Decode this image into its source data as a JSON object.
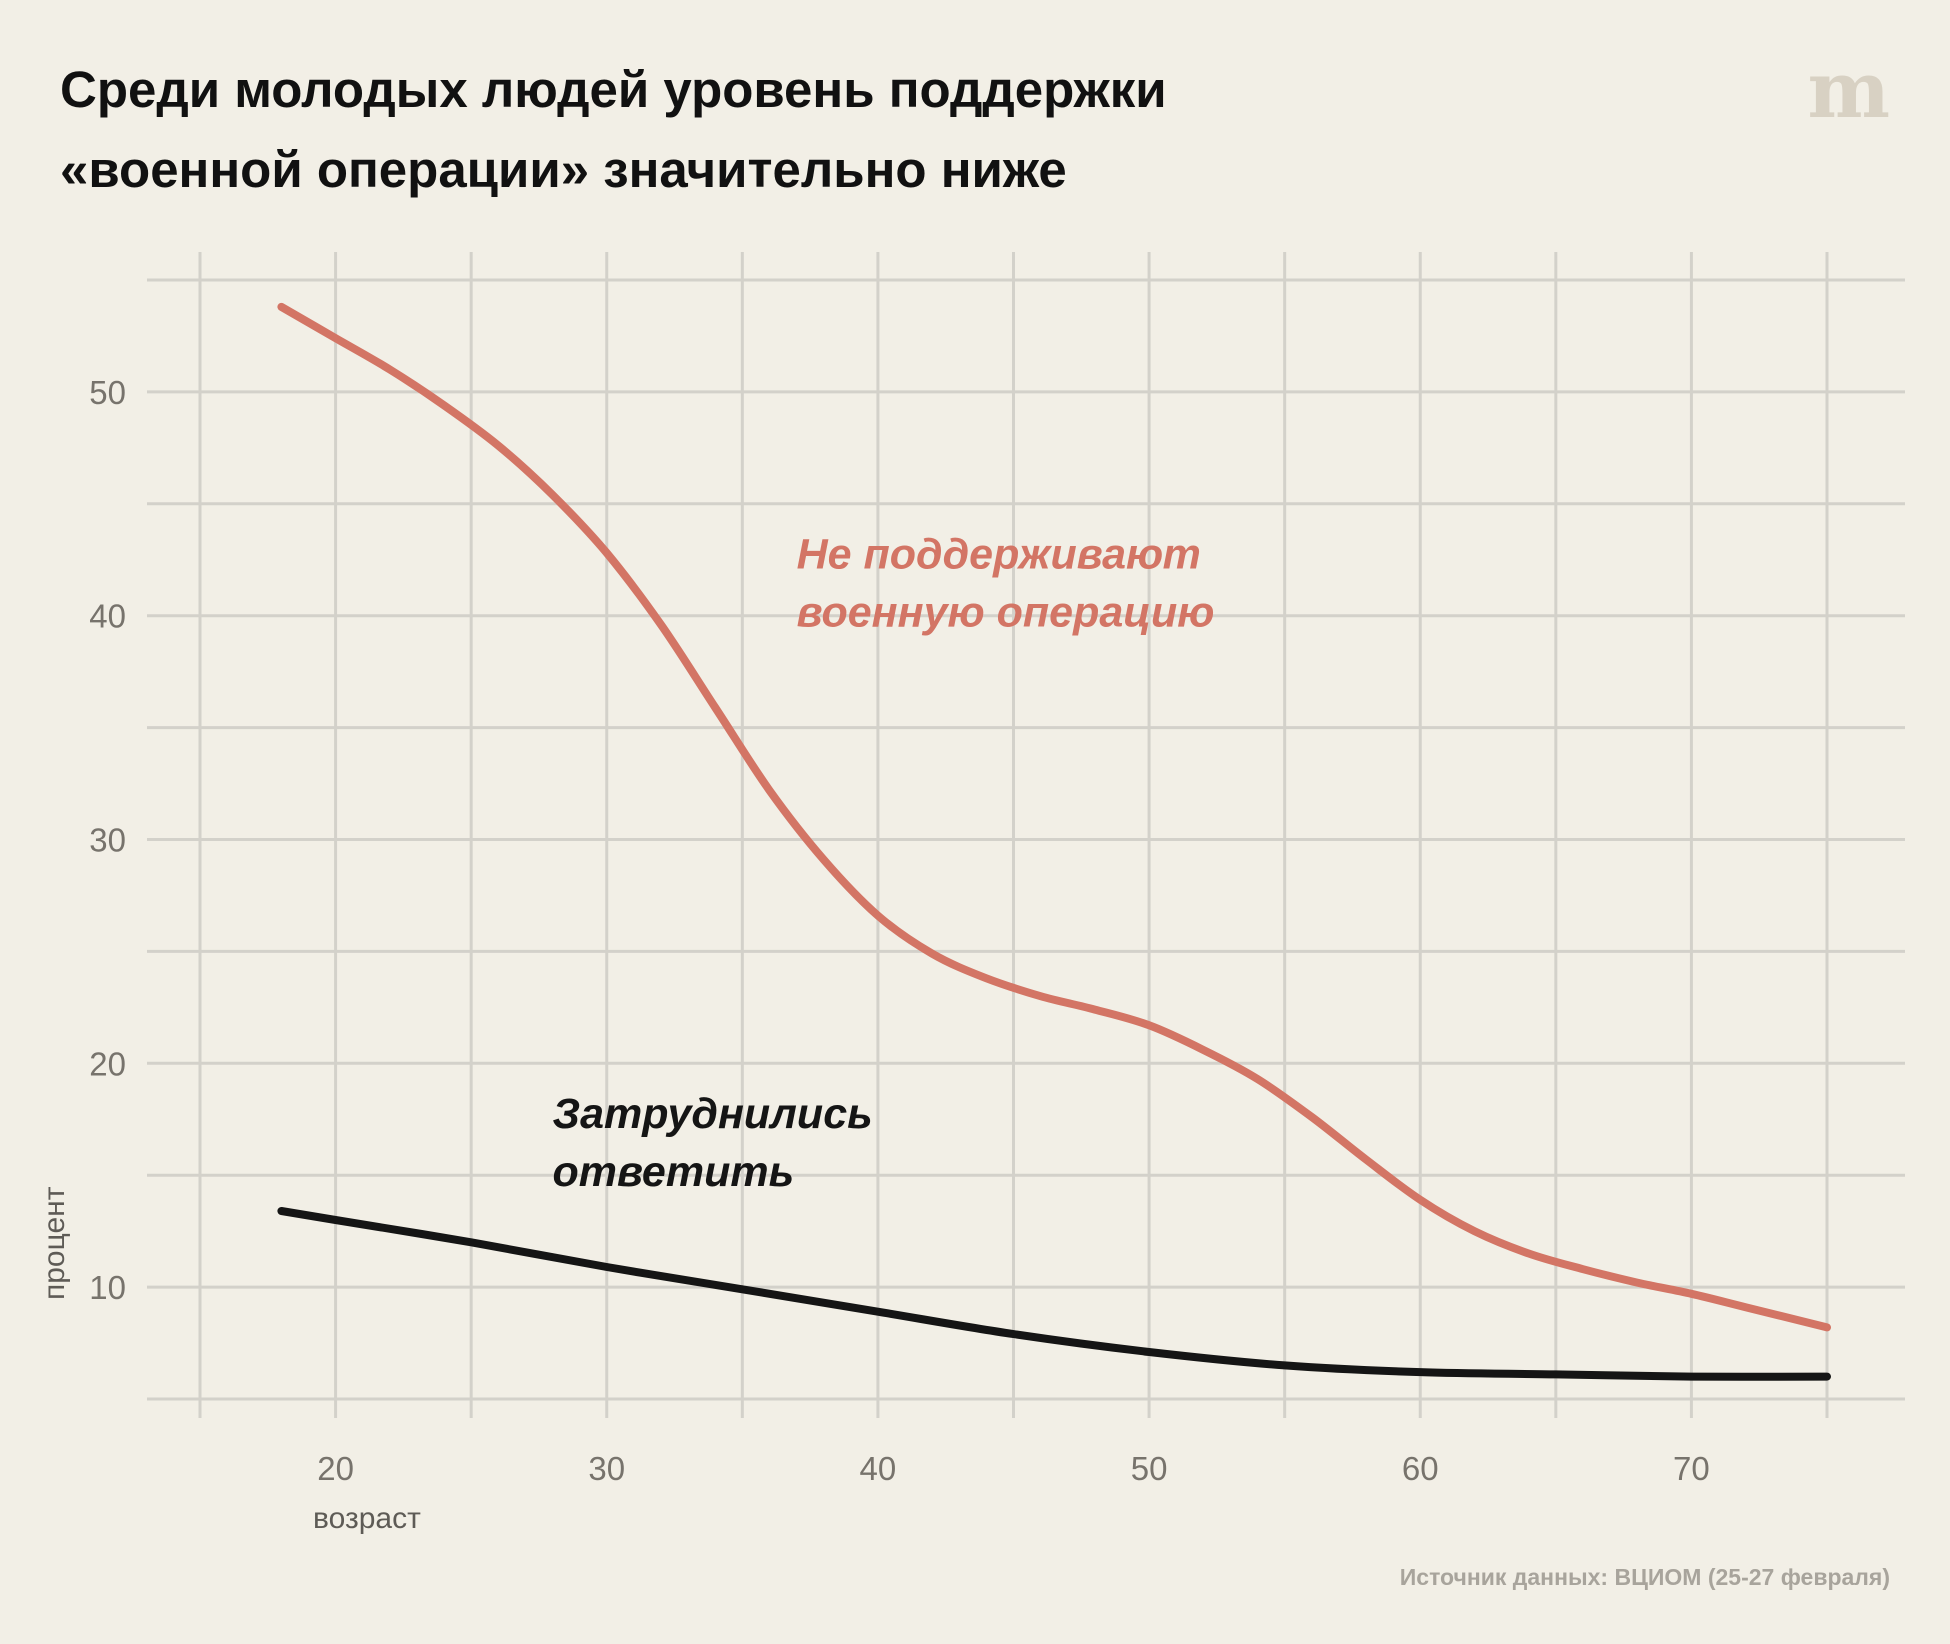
{
  "header": {
    "title_line1": "Среди молодых людей уровень поддержки",
    "title_line2": "«военной операции» значительно ниже",
    "logo_glyph": "m"
  },
  "footer": {
    "source": "Источник данных: ВЦИОМ (25-27 февраля)"
  },
  "colors": {
    "background": "#f2efe6",
    "grid": "#d3d1ca",
    "oppose": "#d37565",
    "undecided": "#151515",
    "tick_text": "#77736c",
    "source_text": "#a8a49c"
  },
  "chart_data": {
    "type": "line",
    "title": "Среди молодых людей уровень поддержки «военной операции» значительно ниже",
    "xlabel": "возраст",
    "ylabel": "процент",
    "xlim": [
      15,
      75
    ],
    "ylim": [
      5,
      55
    ],
    "xticks": [
      20,
      30,
      40,
      50,
      60,
      70
    ],
    "yticks": [
      10,
      20,
      30,
      40,
      50
    ],
    "grid": true,
    "legend": "none (direct labels)",
    "series": [
      {
        "name": "Не поддерживают военную операцию",
        "label_lines": [
          "Не поддерживают",
          "военную операцию"
        ],
        "color": "#d37565",
        "x": [
          18,
          20,
          22,
          24,
          26,
          28,
          30,
          32,
          34,
          36,
          38,
          40,
          42,
          44,
          46,
          48,
          50,
          52,
          54,
          56,
          58,
          60,
          62,
          64,
          66,
          68,
          70,
          72,
          75
        ],
        "y": [
          53.8,
          52.4,
          51.0,
          49.4,
          47.6,
          45.4,
          42.8,
          39.6,
          35.9,
          32.2,
          29.1,
          26.6,
          24.9,
          23.8,
          23.0,
          22.4,
          21.7,
          20.6,
          19.3,
          17.6,
          15.7,
          13.9,
          12.5,
          11.5,
          10.8,
          10.2,
          9.7,
          9.1,
          8.2
        ]
      },
      {
        "name": "Затруднились ответить",
        "label_lines": [
          "Затруднились",
          "ответить"
        ],
        "color": "#151515",
        "x": [
          18,
          20,
          25,
          30,
          35,
          40,
          45,
          50,
          55,
          60,
          65,
          70,
          75
        ],
        "y": [
          13.4,
          13.0,
          12.0,
          10.9,
          9.9,
          8.9,
          7.9,
          7.1,
          6.5,
          6.2,
          6.1,
          6.0,
          6.0
        ]
      }
    ],
    "annotations": [
      {
        "series": 0,
        "x": 37,
        "y": 42.1
      },
      {
        "series": 1,
        "x": 28,
        "y": 17.1
      }
    ]
  }
}
